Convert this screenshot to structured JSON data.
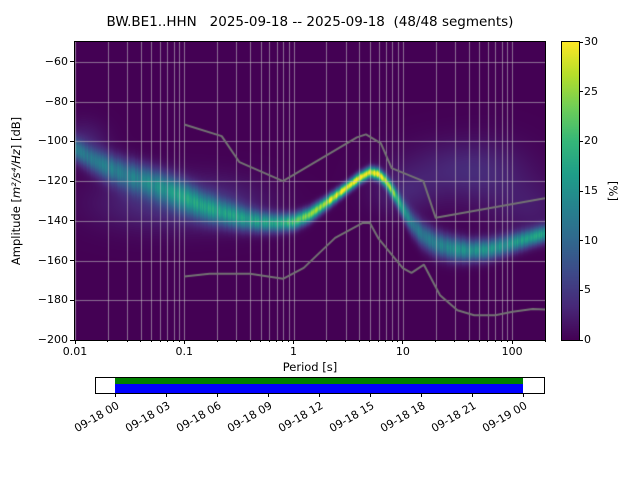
{
  "title": "BW.BE1..HHN   2025-09-18 -- 2025-09-18  (48/48 segments)",
  "chart_data": {
    "type": "heatmap",
    "title": "BW.BE1..HHN   2025-09-18 -- 2025-09-18  (48/48 segments)",
    "xlabel": "Period [s]",
    "ylabel": "Amplitude [m²/s⁴/Hz] [dB]",
    "ylabel_parts": {
      "prefix": "Amplitude [",
      "math": "m²/s⁴/Hz",
      "suffix": "] [dB]"
    },
    "x_scale": "log",
    "xlim": [
      0.01,
      200
    ],
    "ylim": [
      -200,
      -50
    ],
    "grid": true,
    "x_ticks": [
      {
        "v": 0.01,
        "label": "0.01"
      },
      {
        "v": 0.1,
        "label": "0.1"
      },
      {
        "v": 1,
        "label": "1"
      },
      {
        "v": 10,
        "label": "10"
      },
      {
        "v": 100,
        "label": "100"
      }
    ],
    "y_ticks": [
      {
        "v": -60,
        "label": "−60"
      },
      {
        "v": -80,
        "label": "−80"
      },
      {
        "v": -100,
        "label": "−100"
      },
      {
        "v": -120,
        "label": "−120"
      },
      {
        "v": -140,
        "label": "−140"
      },
      {
        "v": -160,
        "label": "−160"
      },
      {
        "v": -180,
        "label": "−180"
      },
      {
        "v": -200,
        "label": "−200"
      }
    ],
    "colorbar": {
      "label": "[%]",
      "min": 0,
      "max": 30,
      "ticks": [
        0,
        5,
        10,
        15,
        20,
        25,
        30
      ],
      "colormap": "viridis"
    },
    "background_value_color": "#440154",
    "viridis_stops": [
      "#440154",
      "#482878",
      "#3e4989",
      "#31688e",
      "#26828e",
      "#1f9e89",
      "#35b779",
      "#6ece58",
      "#b5de2b",
      "#fde725"
    ],
    "ppsd_ridge": [
      [
        0.01,
        -104,
        11,
        4.0
      ],
      [
        0.014,
        -109,
        11,
        4.5
      ],
      [
        0.02,
        -113,
        12,
        5.0
      ],
      [
        0.03,
        -117,
        12,
        5.5
      ],
      [
        0.045,
        -120,
        12,
        5.5
      ],
      [
        0.07,
        -124,
        12,
        5.5
      ],
      [
        0.1,
        -128,
        13,
        5.5
      ],
      [
        0.15,
        -133,
        13,
        5.0
      ],
      [
        0.22,
        -136,
        14,
        4.5
      ],
      [
        0.35,
        -139,
        15,
        4.0
      ],
      [
        0.5,
        -140.5,
        16,
        3.5
      ],
      [
        0.7,
        -141,
        17,
        3.2
      ],
      [
        1.0,
        -140.5,
        21,
        2.8
      ],
      [
        1.4,
        -137,
        24,
        2.5
      ],
      [
        2.0,
        -131,
        27,
        2.2
      ],
      [
        2.8,
        -125,
        29,
        2.0
      ],
      [
        4.0,
        -118.5,
        30,
        1.9
      ],
      [
        5.0,
        -115.5,
        30,
        1.9
      ],
      [
        6.0,
        -116.5,
        29,
        2.0
      ],
      [
        7.0,
        -120,
        26,
        2.2
      ],
      [
        8.5,
        -127,
        20,
        2.6
      ],
      [
        10.0,
        -134,
        14,
        3.2
      ],
      [
        12.0,
        -141,
        12,
        4.0
      ],
      [
        15.0,
        -147,
        12,
        4.4
      ],
      [
        20.0,
        -151.5,
        13,
        4.4
      ],
      [
        28.0,
        -154,
        14,
        4.2
      ],
      [
        40.0,
        -155,
        15,
        3.8
      ],
      [
        60.0,
        -154.5,
        15,
        3.6
      ],
      [
        85.0,
        -152.5,
        15,
        3.4
      ],
      [
        120.0,
        -150,
        16,
        3.2
      ],
      [
        160.0,
        -148,
        16,
        3.0
      ],
      [
        200.0,
        -146.5,
        16,
        3.0
      ]
    ],
    "haze": [
      [
        0.012,
        -99,
        2.5,
        7,
        0.15
      ],
      [
        0.05,
        -131,
        3.0,
        10,
        0.4
      ],
      [
        0.2,
        -131,
        3.0,
        9,
        0.35
      ],
      [
        10.0,
        -126,
        2.5,
        8,
        0.2
      ],
      [
        25.0,
        -114,
        2.2,
        10,
        0.35
      ],
      [
        60.0,
        -116,
        2.2,
        12,
        0.3
      ],
      [
        150.0,
        -134,
        2.0,
        10,
        0.25
      ]
    ],
    "noise_models": {
      "color": "#737373",
      "high": [
        [
          0.1,
          -91.5
        ],
        [
          0.22,
          -97.4
        ],
        [
          0.32,
          -110.5
        ],
        [
          0.8,
          -120.0
        ],
        [
          3.8,
          -98.0
        ],
        [
          4.6,
          -96.5
        ],
        [
          6.3,
          -101.0
        ],
        [
          7.9,
          -113.5
        ],
        [
          15.4,
          -120.0
        ],
        [
          20.0,
          -138.5
        ],
        [
          200.0,
          -128.6
        ]
      ],
      "low": [
        [
          0.1,
          -168.0
        ],
        [
          0.17,
          -166.7
        ],
        [
          0.4,
          -166.7
        ],
        [
          0.8,
          -169.2
        ],
        [
          1.24,
          -163.7
        ],
        [
          2.4,
          -148.6
        ],
        [
          4.3,
          -141.1
        ],
        [
          5.0,
          -141.1
        ],
        [
          6.0,
          -149.0
        ],
        [
          10.0,
          -163.8
        ],
        [
          12.0,
          -166.2
        ],
        [
          15.6,
          -162.1
        ],
        [
          21.9,
          -177.5
        ],
        [
          31.6,
          -185.0
        ],
        [
          45.0,
          -187.5
        ],
        [
          70.0,
          -187.5
        ],
        [
          101.0,
          -185.8
        ],
        [
          154.0,
          -184.4
        ],
        [
          200.0,
          -184.7
        ]
      ]
    }
  },
  "coverage": {
    "tick_labels": [
      "09-18 00",
      "09-18 03",
      "09-18 06",
      "09-18 09",
      "09-18 12",
      "09-18 15",
      "09-18 18",
      "09-18 21",
      "09-19 00"
    ],
    "top_strip_color": "#008000",
    "bottom_strip_color": "#0000ff",
    "frame_color": "#ffffff"
  }
}
